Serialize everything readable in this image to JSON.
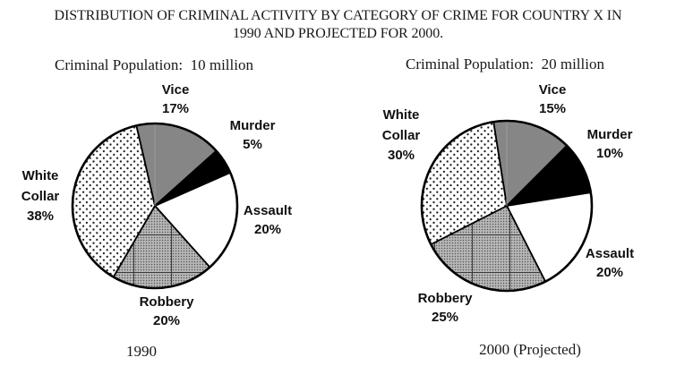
{
  "figure_title": {
    "line1": "DISTRIBUTION OF CRIMINAL ACTIVITY BY CATEGORY OF CRIME FOR COUNTRY X IN",
    "line2": "1990 AND PROJECTED FOR 2000."
  },
  "colors": {
    "vice_gray": "#868686",
    "black": "#000000",
    "white": "#ffffff",
    "outline": "#000000"
  },
  "chart_data": [
    {
      "type": "pie",
      "caption": "1990",
      "population_label": "Criminal Population:  10 million",
      "start_angle_deg": -13,
      "legend_position": "none",
      "slices": [
        {
          "label": "Vice",
          "value": 17,
          "pct_label": "17%",
          "fill": "solid-gray"
        },
        {
          "label": "Murder",
          "value": 5,
          "pct_label": "5%",
          "fill": "solid-black"
        },
        {
          "label": "Assault",
          "value": 20,
          "pct_label": "20%",
          "fill": "white"
        },
        {
          "label": "Robbery",
          "value": 20,
          "pct_label": "20%",
          "fill": "grid-gray"
        },
        {
          "label": "White Collar",
          "value": 38,
          "pct_label": "38%",
          "fill": "dots"
        }
      ]
    },
    {
      "type": "pie",
      "caption": "2000 (Projected)",
      "population_label": "Criminal Population:  20 million",
      "start_angle_deg": -9,
      "legend_position": "none",
      "slices": [
        {
          "label": "Vice",
          "value": 15,
          "pct_label": "15%",
          "fill": "solid-gray"
        },
        {
          "label": "Murder",
          "value": 10,
          "pct_label": "10%",
          "fill": "solid-black"
        },
        {
          "label": "Assault",
          "value": 20,
          "pct_label": "20%",
          "fill": "white"
        },
        {
          "label": "Robbery",
          "value": 25,
          "pct_label": "25%",
          "fill": "grid-gray"
        },
        {
          "label": "White Collar",
          "value": 30,
          "pct_label": "30%",
          "fill": "dots"
        }
      ]
    }
  ]
}
